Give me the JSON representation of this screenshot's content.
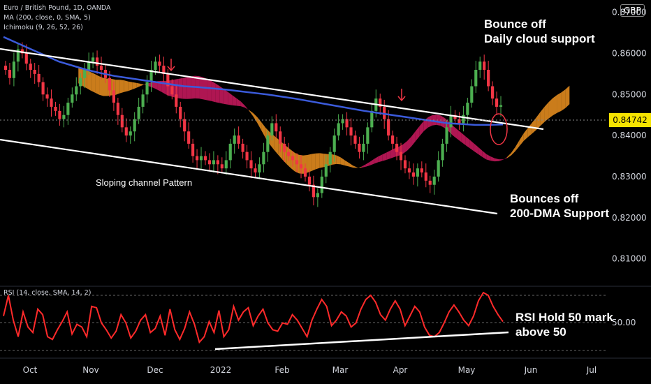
{
  "header": {
    "symbol_line": "Euro / British Pound, 1D, OANDA",
    "ma_line": "MA (200, close, 0, SMA, 5)",
    "ichimoku_line": "Ichimoku (9, 26, 52, 26)",
    "currency": "GBP",
    "last_price": "0.84742"
  },
  "rsi_panel": {
    "legend": "RSI (14, close, SMA, 14, 2)",
    "level_label": "50.00"
  },
  "annotations": {
    "cloud_line1": "Bounce off",
    "cloud_line2": "Daily cloud support",
    "channel": "Sloping channel Pattern",
    "dma_line1": "Bounces off",
    "dma_line2": "200-DMA Support",
    "rsi_line1": "RSI Hold 50 mark",
    "rsi_line2": "above 50"
  },
  "colors": {
    "up": "#26a69a",
    "up_candle": "#4caf50",
    "down": "#f23645",
    "ma200": "#3b5bdb",
    "cloud_bull": "#e08a1e",
    "cloud_bear": "#c2185b",
    "rsi": "#ff2a2a",
    "trendline": "#ffffff",
    "price_tag": "#f5e300"
  },
  "chart_data": {
    "type": "candlestick",
    "instrument": "Euro / British Pound",
    "timeframe": "1D",
    "x_ticks": [
      "Oct",
      "Nov",
      "Dec",
      "2022",
      "Feb",
      "Mar",
      "Apr",
      "May",
      "Jun",
      "Jul"
    ],
    "y_ticks": [
      "0.87000",
      "0.86000",
      "0.85000",
      "0.84000",
      "0.83000",
      "0.82000",
      "0.81000"
    ],
    "y_tick_values": [
      0.87,
      0.86,
      0.85,
      0.84,
      0.83,
      0.82,
      0.81
    ],
    "ylim": [
      0.805,
      0.873
    ],
    "last_price": 0.84742,
    "close_series": [
      0.856,
      0.854,
      0.858,
      0.861,
      0.86,
      0.8575,
      0.856,
      0.855,
      0.853,
      0.85,
      0.849,
      0.847,
      0.846,
      0.844,
      0.845,
      0.848,
      0.85,
      0.852,
      0.854,
      0.856,
      0.858,
      0.859,
      0.857,
      0.856,
      0.854,
      0.851,
      0.848,
      0.845,
      0.842,
      0.84,
      0.841,
      0.844,
      0.847,
      0.85,
      0.853,
      0.856,
      0.858,
      0.857,
      0.855,
      0.852,
      0.85,
      0.847,
      0.844,
      0.841,
      0.838,
      0.835,
      0.834,
      0.835,
      0.834,
      0.833,
      0.834,
      0.833,
      0.832,
      0.834,
      0.838,
      0.84,
      0.838,
      0.836,
      0.834,
      0.832,
      0.831,
      0.833,
      0.836,
      0.84,
      0.843,
      0.841,
      0.838,
      0.836,
      0.835,
      0.834,
      0.833,
      0.832,
      0.83,
      0.828,
      0.825,
      0.826,
      0.83,
      0.833,
      0.836,
      0.84,
      0.843,
      0.844,
      0.842,
      0.84,
      0.838,
      0.836,
      0.838,
      0.842,
      0.846,
      0.849,
      0.847,
      0.844,
      0.84,
      0.838,
      0.836,
      0.834,
      0.832,
      0.831,
      0.83,
      0.832,
      0.831,
      0.829,
      0.828,
      0.83,
      0.834,
      0.838,
      0.842,
      0.845,
      0.844,
      0.843,
      0.845,
      0.848,
      0.852,
      0.856,
      0.858,
      0.856,
      0.852,
      0.849,
      0.847,
      0.8474
    ],
    "ma200_series": [
      0.864,
      0.8625,
      0.861,
      0.8595,
      0.858,
      0.857,
      0.856,
      0.8552,
      0.8545,
      0.854,
      0.8535,
      0.853,
      0.8525,
      0.852,
      0.8518,
      0.8515,
      0.8512,
      0.8508,
      0.8504,
      0.85,
      0.8495,
      0.849,
      0.8484,
      0.8478,
      0.8472,
      0.8466,
      0.846,
      0.8455,
      0.845,
      0.8445,
      0.844,
      0.8435,
      0.843,
      0.8428,
      0.8426,
      0.8426,
      0.8427
    ],
    "rsi_series": [
      55,
      70,
      52,
      40,
      58,
      47,
      43,
      60,
      56,
      40,
      38,
      45,
      51,
      58,
      42,
      49,
      47,
      40,
      62,
      61,
      50,
      45,
      39,
      44,
      56,
      50,
      39,
      44,
      52,
      56,
      43,
      46,
      55,
      41,
      60,
      45,
      38,
      46,
      58,
      49,
      36,
      40,
      51,
      43,
      59,
      40,
      45,
      62,
      52,
      58,
      61,
      48,
      55,
      60,
      50,
      45,
      44,
      50,
      49,
      56,
      52,
      46,
      40,
      52,
      60,
      67,
      62,
      48,
      52,
      58,
      55,
      47,
      50,
      60,
      67,
      70,
      65,
      56,
      52,
      60,
      66,
      60,
      48,
      55,
      62,
      58,
      47,
      41,
      40,
      43,
      50,
      58,
      63,
      58,
      52,
      48,
      55,
      66,
      72,
      70,
      62,
      56,
      51
    ],
    "rsi_level": 50
  }
}
